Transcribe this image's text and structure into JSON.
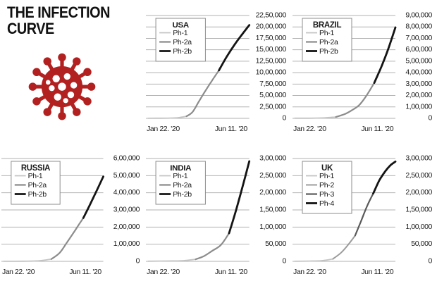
{
  "header": {
    "title_line1": "THE INFECTION",
    "title_line2": "CURVE"
  },
  "icon": {
    "name": "coronavirus-icon",
    "color": "#b22020"
  },
  "style": {
    "grid_color": "#b2b2b2",
    "text_color": "#1a1a1a",
    "legend_border": "#8c8c8c",
    "background": "#ffffff"
  },
  "chart_data": [
    {
      "id": "usa",
      "country": "USA",
      "type": "line",
      "x_axis": {
        "start_label": "Jan 22. '20",
        "end_label": "Jun 11. '20"
      },
      "ylim": [
        0,
        2250000
      ],
      "ymax": 2250000,
      "y_ticks": [
        "22,50,000",
        "20,00,000",
        "17,50,000",
        "15,00,000",
        "12,50,000",
        "10,00,000",
        "7,50,000",
        "5,00,000",
        "2,50,000",
        "0"
      ],
      "legend": [
        {
          "label": "Ph-1",
          "color": "#c4c4c4",
          "width": 1.8
        },
        {
          "label": "Ph-2a",
          "color": "#8c8c8c",
          "width": 2.2
        },
        {
          "label": "Ph-2b",
          "color": "#141414",
          "width": 2.8
        }
      ],
      "series": [
        {
          "name": "Ph-1",
          "color": "#c4c4c4",
          "width": 1.8,
          "points": [
            [
              0,
              2000
            ],
            [
              0.12,
              3000
            ],
            [
              0.22,
              6000
            ],
            [
              0.3,
              15000
            ],
            [
              0.38,
              45000
            ]
          ]
        },
        {
          "name": "Ph-2a",
          "color": "#8c8c8c",
          "width": 2.2,
          "points": [
            [
              0.38,
              45000
            ],
            [
              0.44,
              140000
            ],
            [
              0.5,
              360000
            ],
            [
              0.56,
              580000
            ],
            [
              0.63,
              820000
            ],
            [
              0.7,
              1050000
            ]
          ]
        },
        {
          "name": "Ph-2b",
          "color": "#141414",
          "width": 2.8,
          "points": [
            [
              0.7,
              1050000
            ],
            [
              0.78,
              1360000
            ],
            [
              0.86,
              1630000
            ],
            [
              0.93,
              1840000
            ],
            [
              1.0,
              2040000
            ]
          ]
        }
      ]
    },
    {
      "id": "brazil",
      "country": "BRAZIL",
      "type": "line",
      "x_axis": {
        "start_label": "Jan 22. '20",
        "end_label": "Jun 11. '20"
      },
      "ylim": [
        0,
        900000
      ],
      "ymax": 900000,
      "y_ticks": [
        "9,00,000",
        "8,00,000",
        "7,00,000",
        "6,00,000",
        "5,00,000",
        "4,00,000",
        "3,00,000",
        "2,00,000",
        "1,00,000",
        "0"
      ],
      "legend": [
        {
          "label": "Ph-1",
          "color": "#c4c4c4",
          "width": 1.8
        },
        {
          "label": "Ph-2a",
          "color": "#8c8c8c",
          "width": 2.2
        },
        {
          "label": "Ph-2b",
          "color": "#141414",
          "width": 2.8
        }
      ],
      "series": [
        {
          "name": "Ph-1",
          "color": "#c4c4c4",
          "width": 1.8,
          "points": [
            [
              0,
              1000
            ],
            [
              0.15,
              1500
            ],
            [
              0.28,
              4000
            ],
            [
              0.41,
              12000
            ]
          ]
        },
        {
          "name": "Ph-2a",
          "color": "#8c8c8c",
          "width": 2.2,
          "points": [
            [
              0.41,
              12000
            ],
            [
              0.5,
              38000
            ],
            [
              0.57,
              72000
            ],
            [
              0.64,
              115000
            ],
            [
              0.71,
              195000
            ],
            [
              0.79,
              310000
            ]
          ]
        },
        {
          "name": "Ph-2b",
          "color": "#141414",
          "width": 2.8,
          "points": [
            [
              0.79,
              310000
            ],
            [
              0.86,
              450000
            ],
            [
              0.93,
              610000
            ],
            [
              1.0,
              795000
            ]
          ]
        }
      ]
    },
    {
      "id": "russia",
      "country": "RUSSIA",
      "type": "line",
      "x_axis": {
        "start_label": "Jan 22. '20",
        "end_label": "Jun 11. '20"
      },
      "ylim": [
        0,
        600000
      ],
      "ymax": 600000,
      "y_ticks": [
        "6,00,000",
        "5,00,000",
        "4,00,000",
        "3,00,000",
        "2,00,000",
        "1,00,000",
        "0"
      ],
      "legend": [
        {
          "label": "Ph-1",
          "color": "#c4c4c4",
          "width": 1.8
        },
        {
          "label": "Ph-2a",
          "color": "#8c8c8c",
          "width": 2.2
        },
        {
          "label": "Ph-2b",
          "color": "#141414",
          "width": 2.8
        }
      ],
      "series": [
        {
          "name": "Ph-1",
          "color": "#c4c4c4",
          "width": 1.8,
          "points": [
            [
              0,
              500
            ],
            [
              0.2,
              1000
            ],
            [
              0.35,
              3000
            ],
            [
              0.48,
              13000
            ]
          ]
        },
        {
          "name": "Ph-2a",
          "color": "#8c8c8c",
          "width": 2.2,
          "points": [
            [
              0.48,
              13000
            ],
            [
              0.56,
              48000
            ],
            [
              0.63,
              105000
            ],
            [
              0.7,
              165000
            ],
            [
              0.75,
              210000
            ],
            [
              0.8,
              253000
            ]
          ]
        },
        {
          "name": "Ph-2b",
          "color": "#141414",
          "width": 2.8,
          "points": [
            [
              0.8,
              253000
            ],
            [
              0.87,
              335000
            ],
            [
              0.94,
              420000
            ],
            [
              1.0,
              495000
            ]
          ]
        }
      ]
    },
    {
      "id": "india",
      "country": "INDIA",
      "type": "line",
      "x_axis": {
        "start_label": "Jan 22. '20",
        "end_label": "Jun 11. '20"
      },
      "ylim": [
        0,
        300000
      ],
      "ymax": 300000,
      "y_ticks": [
        "3,00,000",
        "2,50,000",
        "2,00,000",
        "1,50,000",
        "1,00,000",
        "50,000",
        "0"
      ],
      "legend": [
        {
          "label": "Ph-1",
          "color": "#c4c4c4",
          "width": 1.8
        },
        {
          "label": "Ph-2a",
          "color": "#8c8c8c",
          "width": 2.2
        },
        {
          "label": "Ph-2b",
          "color": "#141414",
          "width": 2.8
        }
      ],
      "series": [
        {
          "name": "Ph-1",
          "color": "#c4c4c4",
          "width": 1.8,
          "points": [
            [
              0,
              500
            ],
            [
              0.2,
              1000
            ],
            [
              0.35,
              2000
            ],
            [
              0.47,
              6000
            ]
          ]
        },
        {
          "name": "Ph-2a",
          "color": "#8c8c8c",
          "width": 2.2,
          "points": [
            [
              0.47,
              6000
            ],
            [
              0.55,
              15000
            ],
            [
              0.63,
              30000
            ],
            [
              0.72,
              48000
            ],
            [
              0.8,
              82000
            ]
          ]
        },
        {
          "name": "Ph-2b",
          "color": "#141414",
          "width": 2.8,
          "points": [
            [
              0.8,
              82000
            ],
            [
              0.87,
              150000
            ],
            [
              0.94,
              225000
            ],
            [
              1.0,
              292000
            ]
          ]
        }
      ]
    },
    {
      "id": "uk",
      "country": "UK",
      "type": "line",
      "x_axis": {
        "start_label": "Jan 22. '20",
        "end_label": "Jun 11. '20"
      },
      "ylim": [
        0,
        300000
      ],
      "ymax": 300000,
      "y_ticks": [
        "3,00,000",
        "2,50,000",
        "2,00,000",
        "1,50,000",
        "1,00,000",
        "50,000",
        "0"
      ],
      "legend": [
        {
          "label": "Ph-1",
          "color": "#c4c4c4",
          "width": 1.8
        },
        {
          "label": "Ph-2",
          "color": "#9c9c9c",
          "width": 2.0
        },
        {
          "label": "Ph-3",
          "color": "#5a5a5a",
          "width": 2.2
        },
        {
          "label": "Ph-4",
          "color": "#141414",
          "width": 2.8
        }
      ],
      "series": [
        {
          "name": "Ph-1",
          "color": "#c4c4c4",
          "width": 1.8,
          "points": [
            [
              0,
              300
            ],
            [
              0.15,
              800
            ],
            [
              0.27,
              2000
            ],
            [
              0.38,
              7000
            ]
          ]
        },
        {
          "name": "Ph-2",
          "color": "#9c9c9c",
          "width": 2.0,
          "points": [
            [
              0.38,
              7000
            ],
            [
              0.46,
              25000
            ],
            [
              0.53,
              48000
            ],
            [
              0.6,
              75000
            ]
          ]
        },
        {
          "name": "Ph-3",
          "color": "#5a5a5a",
          "width": 2.2,
          "points": [
            [
              0.6,
              75000
            ],
            [
              0.66,
              118000
            ],
            [
              0.72,
              162000
            ],
            [
              0.78,
              198000
            ]
          ]
        },
        {
          "name": "Ph-4",
          "color": "#141414",
          "width": 2.8,
          "points": [
            [
              0.78,
              198000
            ],
            [
              0.84,
              236000
            ],
            [
              0.9,
              263000
            ],
            [
              0.95,
              280000
            ],
            [
              1.0,
              291000
            ]
          ]
        }
      ]
    }
  ]
}
